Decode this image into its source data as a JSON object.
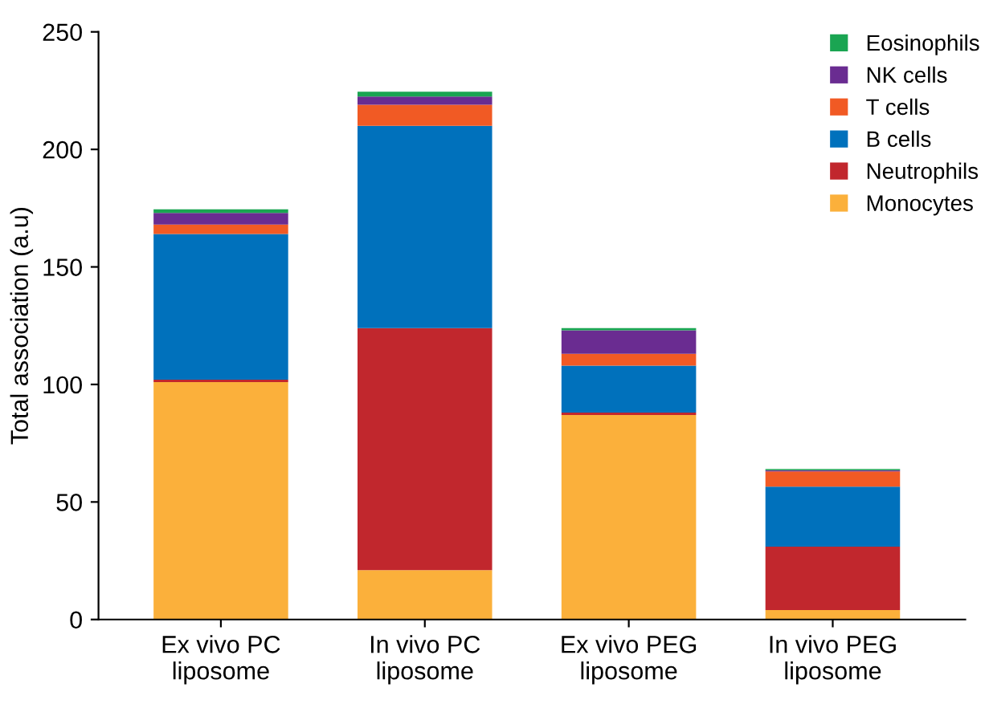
{
  "chart_data": {
    "type": "bar",
    "stacked": true,
    "ylabel": "Total association (a.u)",
    "categories": [
      "Ex vivo PC\nliposome",
      "In vivo PC\nliposome",
      "Ex vivo PEG\nliposome",
      "In vivo PEG\nliposome"
    ],
    "series": [
      {
        "name": "Monocytes",
        "color": "#fbb03b",
        "values": [
          101,
          21,
          87,
          4
        ]
      },
      {
        "name": "Neutrophils",
        "color": "#c1272d",
        "values": [
          1,
          103,
          1,
          27
        ]
      },
      {
        "name": "B cells",
        "color": "#0071bc",
        "values": [
          62,
          86,
          20,
          25.5
        ]
      },
      {
        "name": "T cells",
        "color": "#f15a24",
        "values": [
          4,
          9,
          5,
          6.5
        ]
      },
      {
        "name": "NK cells",
        "color": "#6a2c91",
        "values": [
          5,
          3.5,
          10,
          0.5
        ]
      },
      {
        "name": "Eosinophils",
        "color": "#1aa552",
        "values": [
          1.5,
          2,
          1,
          0.5
        ]
      }
    ],
    "ylim": [
      0,
      250
    ],
    "yticks": [
      0,
      50,
      100,
      150,
      200,
      250
    ],
    "grid": false,
    "legend": "top right"
  }
}
